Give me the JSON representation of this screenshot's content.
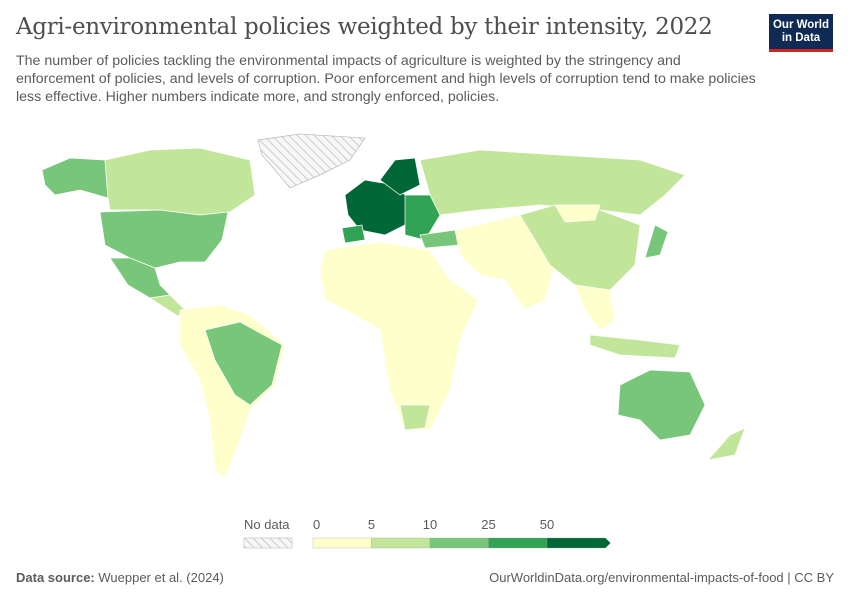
{
  "header": {
    "title": "Agri-environmental policies weighted by their intensity, 2022",
    "subtitle": "The number of policies tackling the environmental impacts of agriculture is weighted by the stringency and enforcement of policies, and levels of corruption. Poor enforcement and high levels of corruption tend to make policies less effective. Higher numbers indicate more, and strongly enforced, policies.",
    "logo": "Our World in Data"
  },
  "chart_data": {
    "type": "choropleth-map",
    "title": "Agri-environmental policies weighted by their intensity, 2022",
    "legend": {
      "no_data_label": "No data",
      "bins": [
        0,
        5,
        10,
        25,
        50
      ],
      "bin_labels": [
        "0",
        "5",
        "10",
        "25",
        "50"
      ],
      "colors": [
        "#ffffcc",
        "#c2e699",
        "#78c679",
        "#31a354",
        "#006837"
      ],
      "open_ended_top": true
    }
  },
  "footer": {
    "source_label": "Data source:",
    "source": "Wuepper et al. (2024)",
    "url": "OurWorldinData.org/environmental-impacts-of-food | CC BY"
  }
}
